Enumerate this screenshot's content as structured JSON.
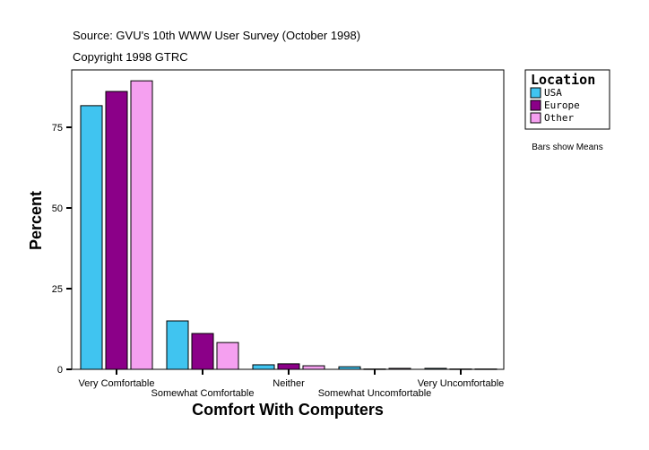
{
  "header": {
    "source": "Source: GVU's 10th WWW User Survey (October 1998)",
    "copyright": "Copyright 1998 GTRC"
  },
  "note": "Bars show Means",
  "chart_data": {
    "type": "bar",
    "title": "",
    "xlabel": "Comfort With Computers",
    "ylabel": "Percent",
    "ylim": [
      0,
      92
    ],
    "yticks": [
      0,
      25,
      50,
      75
    ],
    "grid": false,
    "legend": {
      "title": "Location",
      "placement": "right"
    },
    "categories": [
      "Very Comfortable",
      "Somewhat Comfortable",
      "Neither",
      "Somewhat Uncomfortable",
      "Very Uncomfortable"
    ],
    "series": [
      {
        "name": "USA",
        "color": "#40c4f0",
        "values": [
          81.7,
          15.0,
          1.4,
          0.8,
          0.3
        ]
      },
      {
        "name": "Europe",
        "color": "#8b0088",
        "values": [
          86.1,
          11.1,
          1.7,
          0.1,
          0.1
        ]
      },
      {
        "name": "Other",
        "color": "#f5a0f0",
        "values": [
          89.4,
          8.3,
          1.1,
          0.3,
          0.1
        ]
      }
    ]
  }
}
